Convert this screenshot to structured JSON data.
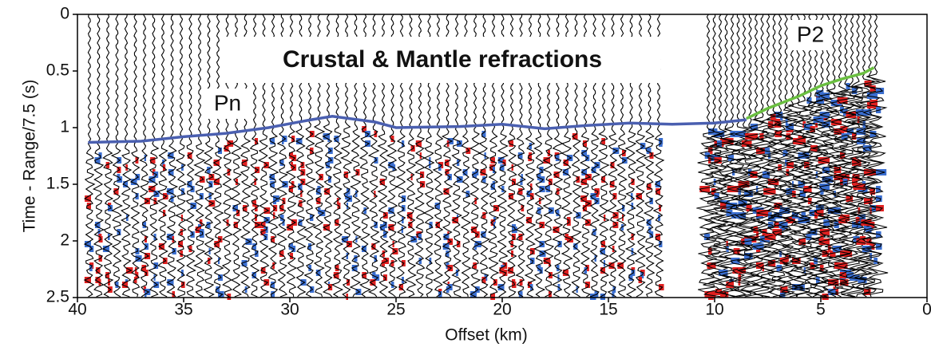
{
  "chart_data": {
    "type": "line",
    "title": "Crustal & Mantle refractions",
    "x_label": "Offset (km)",
    "y_label": "Time - Range/7.5 (s)",
    "xlim": [
      40,
      0
    ],
    "xticks": [
      40,
      35,
      30,
      25,
      20,
      15,
      10,
      5,
      0
    ],
    "ylim": [
      2.5,
      0
    ],
    "yticks": [
      0,
      0.5,
      1,
      1.5,
      2,
      2.5
    ],
    "series": [
      {
        "name": "Pn",
        "color": "#4a5fb0",
        "x": [
          39.5,
          37,
          35,
          33,
          31,
          29,
          28,
          26,
          25,
          22,
          20,
          18,
          16,
          14,
          12,
          10,
          8.5
        ],
        "values": [
          1.13,
          1.12,
          1.08,
          1.05,
          1.0,
          0.93,
          0.9,
          0.95,
          1.0,
          0.99,
          0.97,
          1.01,
          0.98,
          0.96,
          0.97,
          0.96,
          0.93
        ]
      },
      {
        "name": "P2",
        "color": "#6abf40",
        "x": [
          8.5,
          7.5,
          6,
          5,
          4,
          3,
          2.5
        ],
        "values": [
          0.92,
          0.83,
          0.72,
          0.63,
          0.57,
          0.52,
          0.47
        ]
      }
    ]
  }
}
